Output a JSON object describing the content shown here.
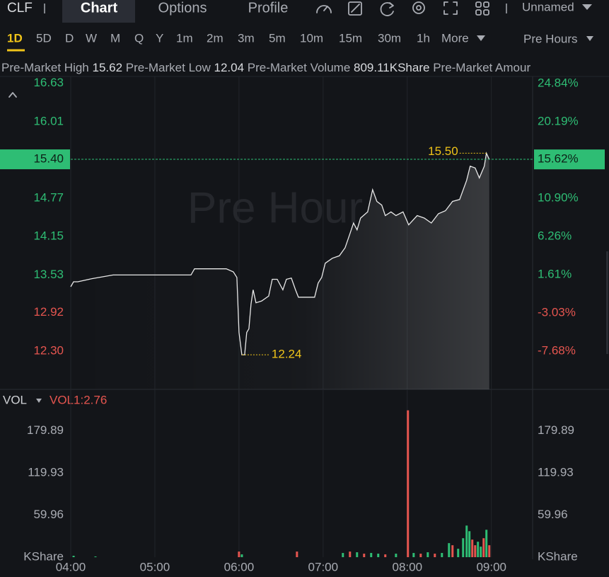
{
  "header": {
    "symbol": "CLF",
    "tabs": [
      "Chart",
      "Options",
      "Profile"
    ],
    "layout_name": "Unnamed"
  },
  "timeframes": [
    "1D",
    "5D",
    "D",
    "W",
    "M",
    "Q",
    "Y",
    "1m",
    "2m",
    "3m",
    "5m",
    "10m",
    "15m",
    "30m",
    "1h",
    "More"
  ],
  "session": "Pre Hours",
  "stats": [
    {
      "label": "Pre-Market High",
      "value": "15.62"
    },
    {
      "label": "Pre-Market Low",
      "value": "12.04"
    },
    {
      "label": "Pre-Market Volume",
      "value": "809.11KShare"
    },
    {
      "label": "Pre-Market Amour"
    }
  ],
  "chart_data": [
    {
      "type": "line",
      "watermark": "Pre Hour",
      "color": "#e8e8e8",
      "x": [
        4.0,
        4.034,
        4.084,
        4.252,
        4.504,
        4.84,
        5.429,
        5.471,
        5.849,
        5.933,
        5.975,
        6.0,
        6.034,
        6.067,
        6.092,
        6.118,
        6.143,
        6.168,
        6.202,
        6.269,
        6.353,
        6.395,
        6.454,
        6.521,
        6.563,
        6.622,
        6.672,
        6.706,
        6.899,
        6.941,
        6.983,
        7.025,
        7.109,
        7.193,
        7.261,
        7.319,
        7.361,
        7.403,
        7.445,
        7.529,
        7.588,
        7.639,
        7.697,
        7.739,
        7.807,
        7.866,
        7.95,
        8.017,
        8.118,
        8.202,
        8.286,
        8.37,
        8.454,
        8.538,
        8.622,
        8.706,
        8.748,
        8.807,
        8.857,
        8.916,
        8.941,
        8.975
      ],
      "values": [
        13.34,
        13.42,
        13.42,
        13.47,
        13.53,
        13.53,
        13.53,
        13.63,
        13.63,
        13.58,
        13.49,
        12.6,
        12.24,
        12.24,
        12.6,
        12.66,
        13.06,
        13.29,
        13.08,
        13.11,
        13.19,
        13.46,
        13.46,
        13.29,
        13.46,
        13.48,
        13.29,
        13.17,
        13.17,
        13.4,
        13.49,
        13.72,
        13.8,
        13.84,
        13.97,
        14.2,
        14.37,
        14.26,
        14.45,
        14.55,
        14.91,
        14.72,
        14.66,
        14.49,
        14.55,
        14.49,
        14.55,
        14.34,
        14.49,
        14.45,
        14.37,
        14.52,
        14.57,
        14.72,
        14.75,
        15.06,
        15.29,
        15.26,
        15.1,
        15.29,
        15.5,
        15.4
      ],
      "xlim": [
        4,
        9.49
      ],
      "ylim": [
        11.68,
        16.74
      ],
      "y2lim": [
        -12.33,
        25.7
      ],
      "yticks": [
        16.63,
        16.01,
        14.77,
        14.15,
        13.53,
        12.92,
        {
          "value": 12.3,
          "label": "12.30"
        }
      ],
      "y2ticks": [
        {
          "value": 24.84,
          "label": "24.84%"
        },
        {
          "value": 20.19,
          "label": "20.19%"
        },
        {
          "value": 10.9,
          "label": "10.90%"
        },
        {
          "value": 6.26,
          "label": "6.26%"
        },
        {
          "value": 1.61,
          "label": "1.61%"
        },
        {
          "value": -3.03,
          "label": "-3.03%"
        },
        {
          "value": -7.68,
          "label": "-7.68%"
        }
      ],
      "last_price": {
        "value": 15.4,
        "label": "15.40"
      },
      "last_change": {
        "value": 15.62,
        "label": "15.62%"
      },
      "annotations": [
        {
          "x": 8.941,
          "value": 15.5,
          "label": "15.50"
        },
        {
          "x": 6.034,
          "value": 12.24
        }
      ],
      "up_color": "#2ebd74",
      "down_color": "#e5554f",
      "grid": true
    },
    {
      "type": "bar",
      "indicator": "VOL",
      "indicator_value": "VOL1:2.76",
      "unit": "KShare",
      "x": [
        4.034,
        4.294,
        6.0,
        6.034,
        6.689,
        7.235,
        7.319,
        7.403,
        7.487,
        7.571,
        7.655,
        7.739,
        7.866,
        8.008,
        8.076,
        8.16,
        8.244,
        8.328,
        8.412,
        8.496,
        8.538,
        8.605,
        8.664,
        8.706,
        8.739,
        8.773,
        8.807,
        8.84,
        8.874,
        8.908,
        8.941,
        8.975
      ],
      "values": [
        2,
        1,
        8,
        4,
        8,
        6,
        8,
        7,
        5,
        6,
        5,
        4,
        5,
        209,
        6,
        5,
        7,
        5,
        6,
        20,
        17,
        12,
        27,
        45,
        37,
        25,
        17,
        22,
        15,
        27,
        39,
        17
      ],
      "colors": [
        "#2ebd74",
        "#2ebd74",
        "#e5554f",
        "#2ebd74",
        "#e5554f",
        "#2ebd74",
        "#e5554f",
        "#2ebd74",
        "#e5554f",
        "#2ebd74",
        "#2ebd74",
        "#e5554f",
        "#2ebd74",
        "#e5554f",
        "#2ebd74",
        "#e5554f",
        "#2ebd74",
        "#e5554f",
        "#2ebd74",
        "#2ebd74",
        "#e5554f",
        "#2ebd74",
        "#2ebd74",
        "#2ebd74",
        "#2ebd74",
        "#e5554f",
        "#e5554f",
        "#2ebd74",
        "#2ebd74",
        "#e5554f",
        "#2ebd74",
        "#e5554f"
      ],
      "xlim": [
        4,
        9.49
      ],
      "ylim": [
        0,
        238.8
      ],
      "yticks": [
        59.96,
        119.93,
        179.89
      ],
      "xticks": [
        {
          "value": 4,
          "label": "04:00"
        },
        {
          "value": 5,
          "label": "05:00"
        },
        {
          "value": 6,
          "label": "06:00"
        },
        {
          "value": 7,
          "label": "07:00"
        },
        {
          "value": 8,
          "label": "08:00"
        },
        {
          "value": 9,
          "label": "09:00"
        }
      ]
    }
  ]
}
